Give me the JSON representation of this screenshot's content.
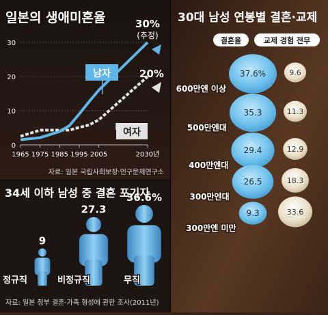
{
  "colors": {
    "men": "#5fb4e8",
    "women": "#e2e2e2",
    "bubble_blue": "#6fc1ec",
    "bubble_beige": "#eadfc9",
    "panel_dark": "#1c1411",
    "person_blue": "#5fa8da"
  },
  "chart_data": [
    {
      "type": "line",
      "title": "일본의 생애미혼율",
      "x_ticks": [
        "1965",
        "1975",
        "1985",
        "1995",
        "2005",
        "2030년"
      ],
      "x_values": [
        1965,
        1975,
        1985,
        1995,
        2005,
        2030
      ],
      "y_ticks": [
        "0",
        "10",
        "20",
        "30"
      ],
      "ylim": [
        0,
        30
      ],
      "series": [
        {
          "name": "남자",
          "x": [
            1965,
            1975,
            1985,
            1990,
            1995,
            2000,
            2005,
            2030
          ],
          "y": [
            1.5,
            2.1,
            3.9,
            5.6,
            9.0,
            12.6,
            16.0,
            30.0
          ]
        },
        {
          "name": "여자",
          "x": [
            1965,
            1975,
            1985,
            1990,
            1995,
            2000,
            2005,
            2030
          ],
          "y": [
            2.5,
            4.3,
            4.3,
            4.3,
            5.1,
            5.8,
            7.3,
            20.0
          ]
        }
      ],
      "end_label_men": "30%",
      "end_label_men_note": "(추정)",
      "end_label_women": "20%",
      "source": "자료: 일본 국립사회보장·인구문제연구소"
    },
    {
      "type": "bar",
      "title": "34세 이하 남성 중 결혼 포기자",
      "categories": [
        "정규직",
        "비정규직",
        "무직"
      ],
      "values": [
        9,
        27.3,
        36.6
      ],
      "value_labels": [
        "9",
        "27.3",
        "36.6%"
      ],
      "source": "자료: 일본 정부 결혼·가족 형성에 관한 조사(2011년)"
    },
    {
      "type": "table",
      "title": "30대 남성 연봉별 결혼·교제",
      "series_names": [
        "결혼율",
        "교제 경험 전무"
      ],
      "categories": [
        "600만엔 이상",
        "500만엔대",
        "400만엔대",
        "300만엔대",
        "300만엔 미만"
      ],
      "married": [
        37.6,
        35.3,
        29.4,
        26.5,
        9.3
      ],
      "married_labels": [
        "37.6%",
        "35.3",
        "29.4",
        "26.5",
        "9.3"
      ],
      "never_dated": [
        9.6,
        11.3,
        12.9,
        18.3,
        33.6
      ],
      "never_dated_labels": [
        "9.6",
        "11.3",
        "12.9",
        "18.3",
        "33.6"
      ]
    }
  ]
}
